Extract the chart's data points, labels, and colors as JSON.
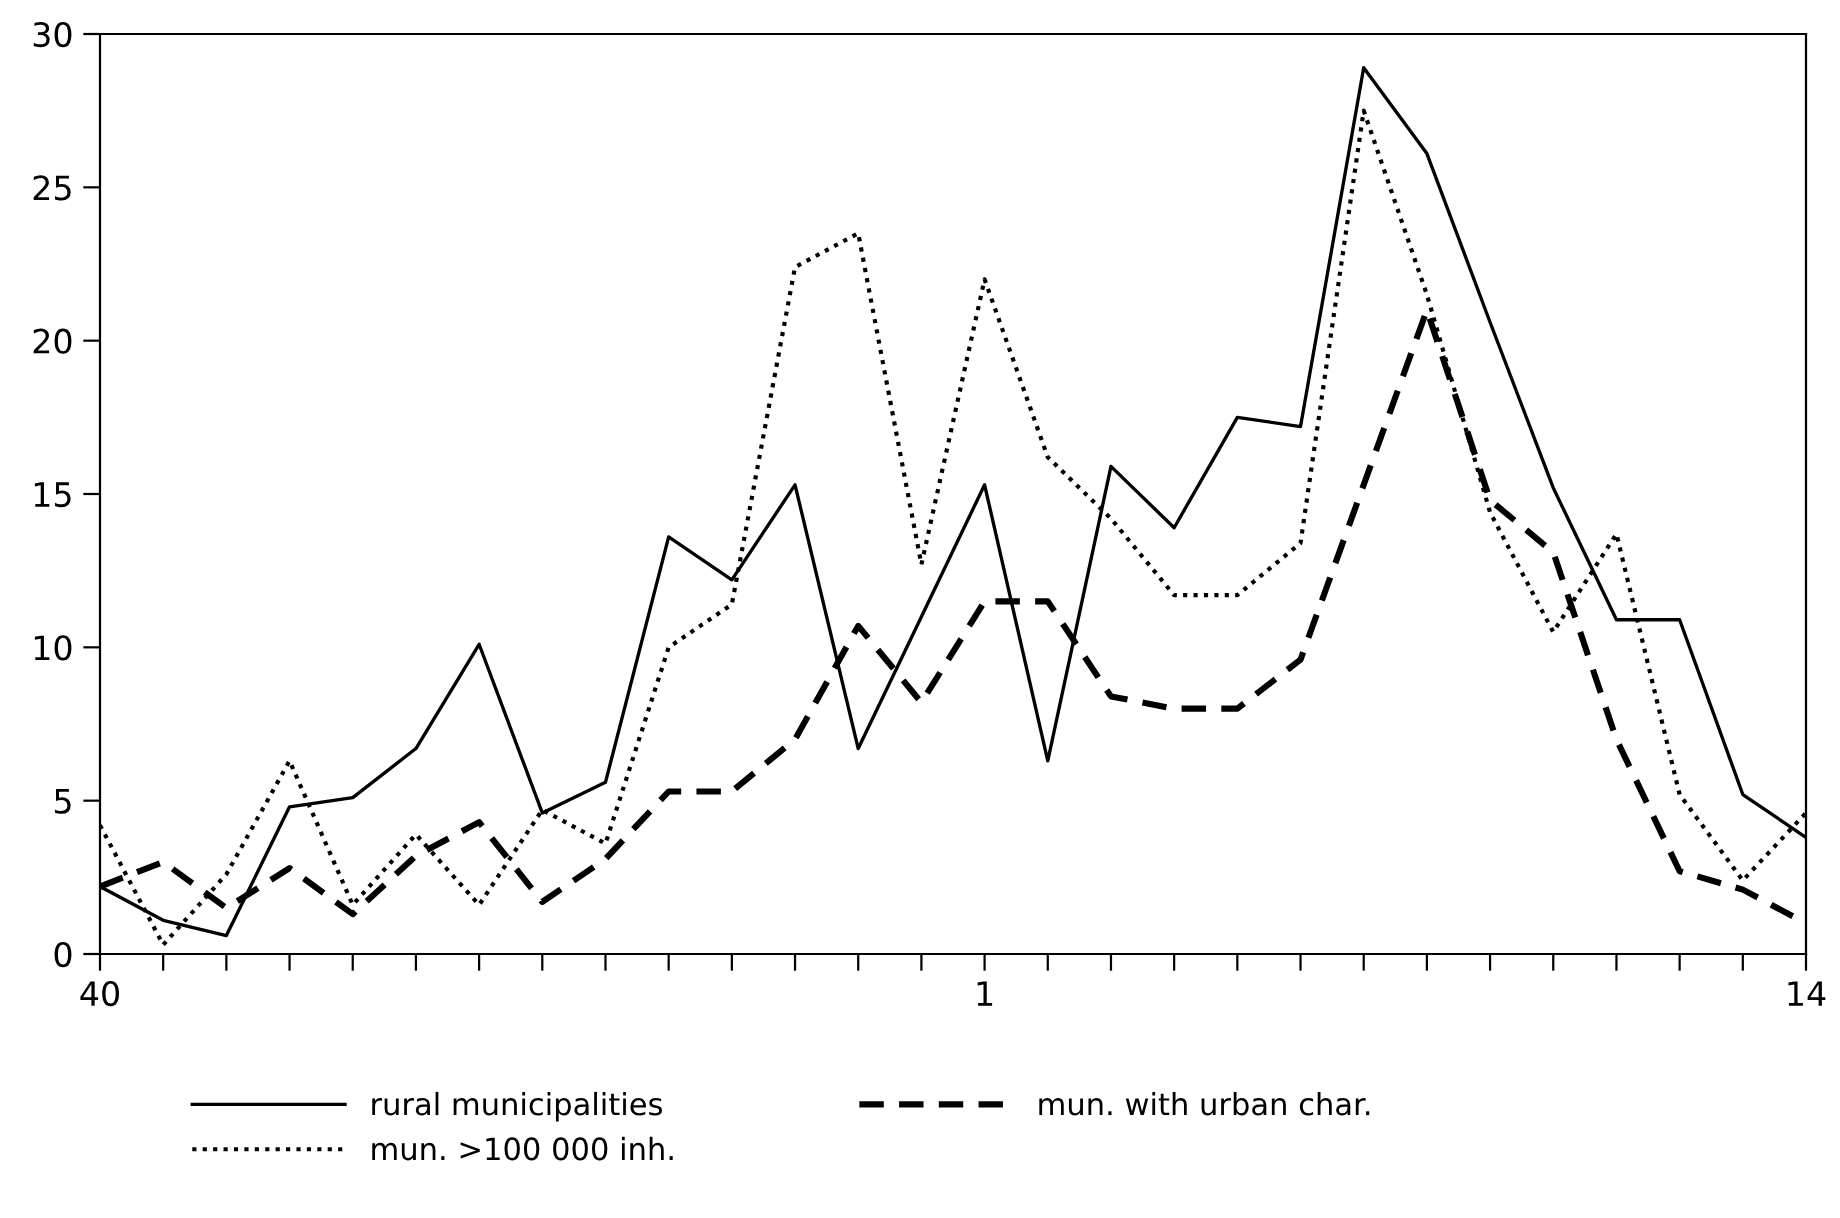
{
  "chart_data": {
    "type": "line",
    "categories": [
      "40",
      null,
      null,
      null,
      null,
      null,
      null,
      null,
      null,
      null,
      null,
      null,
      null,
      null,
      "1",
      null,
      null,
      null,
      null,
      null,
      null,
      null,
      null,
      null,
      null,
      null,
      null,
      "14"
    ],
    "ylim": [
      0,
      30
    ],
    "yticks": [
      0,
      5,
      10,
      15,
      20,
      25,
      30
    ],
    "grid": false,
    "legend": "bottom",
    "marker": "none",
    "series": [
      {
        "name": "rural municipalities",
        "color": "#000000",
        "line_style": "solid",
        "values": [
          2.2,
          1.1,
          0.6,
          4.8,
          5.1,
          6.7,
          10.1,
          4.6,
          5.6,
          13.6,
          12.2,
          15.3,
          6.7,
          11.0,
          15.3,
          6.3,
          15.9,
          13.9,
          17.5,
          17.2,
          28.9,
          26.1,
          20.6,
          15.2,
          10.9,
          10.9,
          5.2,
          3.8
        ]
      },
      {
        "name": "mun. >100 000 inh.",
        "color": "#000000",
        "line_style": "dotted",
        "values": [
          4.2,
          0.3,
          2.6,
          6.3,
          1.6,
          3.9,
          1.6,
          4.7,
          3.6,
          10.0,
          11.4,
          22.4,
          23.5,
          12.7,
          22.0,
          16.2,
          14.2,
          11.7,
          11.7,
          13.4,
          27.5,
          21.5,
          14.4,
          10.5,
          13.7,
          5.2,
          2.4,
          4.6
        ]
      },
      {
        "name": "mun. with urban char.",
        "color": "#000000",
        "line_style": "dashed",
        "values": [
          2.2,
          3.0,
          1.5,
          2.8,
          1.3,
          3.2,
          4.3,
          1.7,
          3.1,
          5.3,
          5.3,
          7.0,
          10.7,
          8.2,
          11.5,
          11.5,
          8.4,
          8.0,
          8.0,
          9.6,
          15.3,
          21.0,
          14.8,
          13.1,
          7.0,
          2.7,
          2.1,
          1.0
        ]
      }
    ]
  }
}
